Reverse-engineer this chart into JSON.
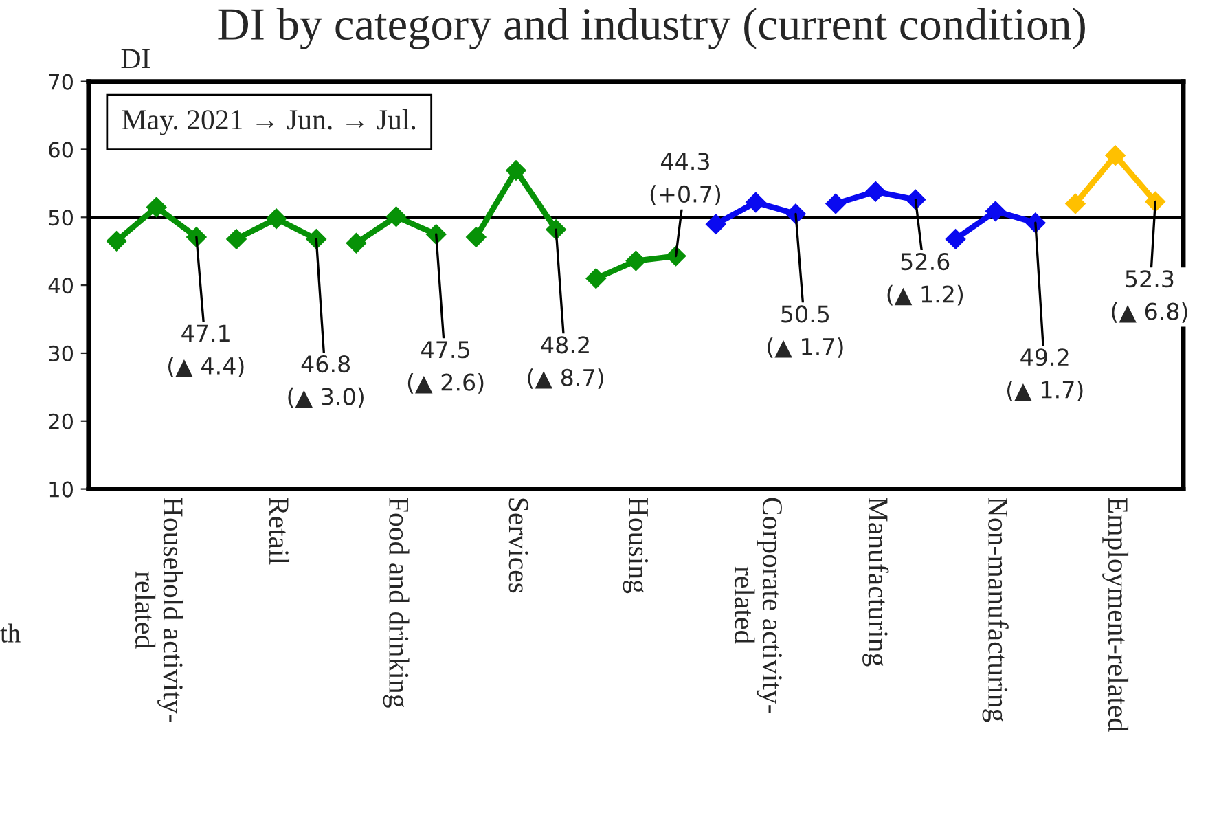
{
  "chart_data": {
    "type": "line",
    "title": "DI by category and industry (current condition)",
    "ylabel": "DI",
    "categories": [
      null,
      "Household activity-\nrelated",
      null,
      null,
      "Retail",
      null,
      null,
      "Food and drinking",
      null,
      null,
      "Services",
      null,
      null,
      "Housing",
      null,
      null,
      "Corporate activity-\nrelated",
      null,
      null,
      "Manufacturing",
      null,
      null,
      "Non-manufacturing",
      null,
      null,
      "Employment-related",
      null
    ],
    "series": [
      {
        "color": "#079207",
        "values": [
          46.5,
          51.5,
          47.1,
          null,
          null,
          null,
          null,
          null,
          null,
          null,
          null,
          null,
          null,
          null,
          null,
          null,
          null,
          null,
          null,
          null,
          null,
          null,
          null,
          null,
          null,
          null,
          null
        ],
        "value_labels": [
          null,
          null,
          "47.1\n(▲ 4.4)",
          null,
          null,
          null,
          null,
          null,
          null,
          null,
          null,
          null,
          null,
          null,
          null,
          null,
          null,
          null,
          null,
          null,
          null,
          null,
          null,
          null,
          null,
          null,
          null
        ]
      },
      {
        "color": "#079207",
        "values": [
          null,
          null,
          null,
          46.8,
          49.8,
          46.8,
          null,
          null,
          null,
          null,
          null,
          null,
          null,
          null,
          null,
          null,
          null,
          null,
          null,
          null,
          null,
          null,
          null,
          null,
          null,
          null,
          null
        ],
        "value_labels": [
          null,
          null,
          null,
          null,
          null,
          "46.8\n(▲ 3.0)",
          null,
          null,
          null,
          null,
          null,
          null,
          null,
          null,
          null,
          null,
          null,
          null,
          null,
          null,
          null,
          null,
          null,
          null,
          null,
          null,
          null
        ]
      },
      {
        "color": "#079207",
        "values": [
          null,
          null,
          null,
          null,
          null,
          null,
          46.2,
          50.1,
          47.5,
          null,
          null,
          null,
          null,
          null,
          null,
          null,
          null,
          null,
          null,
          null,
          null,
          null,
          null,
          null,
          null,
          null,
          null
        ],
        "value_labels": [
          null,
          null,
          null,
          null,
          null,
          null,
          null,
          null,
          "47.5\n(▲ 2.6)",
          null,
          null,
          null,
          null,
          null,
          null,
          null,
          null,
          null,
          null,
          null,
          null,
          null,
          null,
          null,
          null,
          null,
          null
        ]
      },
      {
        "color": "#079207",
        "values": [
          null,
          null,
          null,
          null,
          null,
          null,
          null,
          null,
          null,
          47.1,
          56.9,
          48.2,
          null,
          null,
          null,
          null,
          null,
          null,
          null,
          null,
          null,
          null,
          null,
          null,
          null,
          null,
          null
        ],
        "value_labels": [
          null,
          null,
          null,
          null,
          null,
          null,
          null,
          null,
          null,
          null,
          null,
          "48.2\n(▲ 8.7)",
          null,
          null,
          null,
          null,
          null,
          null,
          null,
          null,
          null,
          null,
          null,
          null,
          null,
          null,
          null
        ]
      },
      {
        "color": "#079207",
        "values": [
          null,
          null,
          null,
          null,
          null,
          null,
          null,
          null,
          null,
          null,
          null,
          null,
          41.0,
          43.6,
          44.3,
          null,
          null,
          null,
          null,
          null,
          null,
          null,
          null,
          null,
          null,
          null,
          null
        ],
        "value_labels": [
          null,
          null,
          null,
          null,
          null,
          null,
          null,
          null,
          null,
          null,
          null,
          null,
          null,
          null,
          "44.3\n(+0.7)",
          null,
          null,
          null,
          null,
          null,
          null,
          null,
          null,
          null,
          null,
          null,
          null
        ]
      },
      {
        "color": "#0a0af0",
        "values": [
          null,
          null,
          null,
          null,
          null,
          null,
          null,
          null,
          null,
          null,
          null,
          null,
          null,
          null,
          null,
          49.0,
          52.2,
          50.5,
          null,
          null,
          null,
          null,
          null,
          null,
          null,
          null,
          null
        ],
        "value_labels": [
          null,
          null,
          null,
          null,
          null,
          null,
          null,
          null,
          null,
          null,
          null,
          null,
          null,
          null,
          null,
          null,
          null,
          "50.5\n(▲ 1.7)",
          null,
          null,
          null,
          null,
          null,
          null,
          null,
          null,
          null
        ]
      },
      {
        "color": "#0a0af0",
        "values": [
          null,
          null,
          null,
          null,
          null,
          null,
          null,
          null,
          null,
          null,
          null,
          null,
          null,
          null,
          null,
          null,
          null,
          null,
          52.0,
          53.8,
          52.6,
          null,
          null,
          null,
          null,
          null,
          null
        ],
        "value_labels": [
          null,
          null,
          null,
          null,
          null,
          null,
          null,
          null,
          null,
          null,
          null,
          null,
          null,
          null,
          null,
          null,
          null,
          null,
          null,
          null,
          "52.6\n(▲ 1.2)",
          null,
          null,
          null,
          null,
          null,
          null
        ]
      },
      {
        "color": "#0a0af0",
        "values": [
          null,
          null,
          null,
          null,
          null,
          null,
          null,
          null,
          null,
          null,
          null,
          null,
          null,
          null,
          null,
          null,
          null,
          null,
          null,
          null,
          null,
          46.8,
          50.9,
          49.2,
          null,
          null,
          null
        ],
        "value_labels": [
          null,
          null,
          null,
          null,
          null,
          null,
          null,
          null,
          null,
          null,
          null,
          null,
          null,
          null,
          null,
          null,
          null,
          null,
          null,
          null,
          null,
          null,
          null,
          "49.2\n(▲ 1.7)",
          null,
          null,
          null
        ]
      },
      {
        "color": "#ffc000",
        "values": [
          null,
          null,
          null,
          null,
          null,
          null,
          null,
          null,
          null,
          null,
          null,
          null,
          null,
          null,
          null,
          null,
          null,
          null,
          null,
          null,
          null,
          null,
          null,
          null,
          52.0,
          59.1,
          52.3
        ],
        "value_labels": [
          null,
          null,
          null,
          null,
          null,
          null,
          null,
          null,
          null,
          null,
          null,
          null,
          null,
          null,
          null,
          null,
          null,
          null,
          null,
          null,
          null,
          null,
          null,
          null,
          null,
          null,
          "52.3\n(▲ 6.8)"
        ]
      }
    ],
    "ylim": [
      10,
      70
    ],
    "yticks": [
      10,
      20,
      30,
      40,
      50,
      60,
      70
    ],
    "ref_lines": [
      {
        "axis": "y",
        "value": 50,
        "label": null,
        "color": "#000000"
      }
    ],
    "annotations": [
      "May. 2021 → Jun. → Jul.",
      "th"
    ],
    "marker": "diamond",
    "line_style": "solid",
    "grid": false,
    "legend": false
  }
}
